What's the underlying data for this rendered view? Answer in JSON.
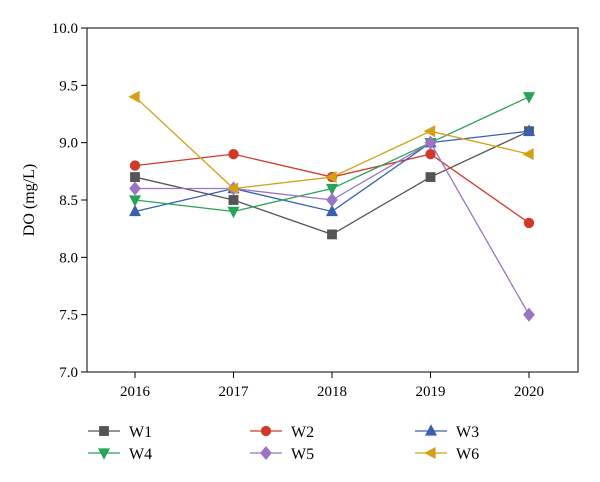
{
  "chart_data": {
    "type": "line",
    "title": "",
    "xlabel": "",
    "ylabel": "DO (mg/L)",
    "categories": [
      "2016",
      "2017",
      "2018",
      "2019",
      "2020"
    ],
    "ylim": [
      7.0,
      10.0
    ],
    "yticks": [
      "7.0",
      "7.5",
      "8.0",
      "8.5",
      "9.0",
      "9.5",
      "10.0"
    ],
    "grid": false,
    "legend_position": "bottom",
    "series": [
      {
        "name": "W1",
        "color": "#555555",
        "marker": "square",
        "values": [
          8.7,
          8.5,
          8.2,
          8.7,
          9.1
        ]
      },
      {
        "name": "W2",
        "color": "#d03a2a",
        "marker": "circle",
        "values": [
          8.8,
          8.9,
          8.7,
          8.9,
          8.3
        ]
      },
      {
        "name": "W3",
        "color": "#3a5fb0",
        "marker": "triangle-up",
        "values": [
          8.4,
          8.6,
          8.4,
          9.0,
          9.1
        ]
      },
      {
        "name": "W4",
        "color": "#27a35a",
        "marker": "triangle-down",
        "values": [
          8.5,
          8.4,
          8.6,
          9.0,
          9.4
        ]
      },
      {
        "name": "W5",
        "color": "#9b74c4",
        "marker": "diamond",
        "values": [
          8.6,
          8.6,
          8.5,
          9.0,
          7.5
        ]
      },
      {
        "name": "W6",
        "color": "#d4a017",
        "marker": "triangle-left",
        "values": [
          9.4,
          8.6,
          8.7,
          9.1,
          8.9
        ]
      }
    ]
  }
}
